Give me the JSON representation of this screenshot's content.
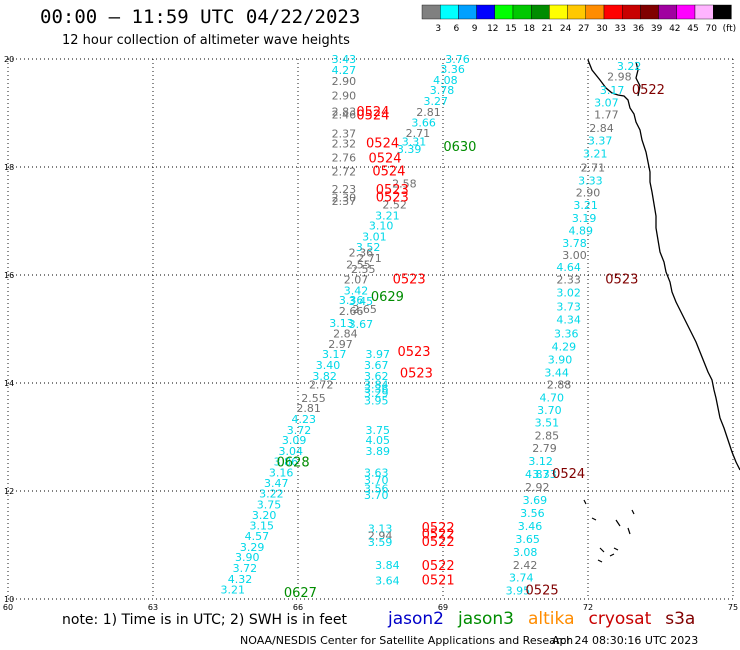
{
  "header": {
    "title": "00:00 – 11:59 UTC 04/22/2023",
    "subtitle": "12 hour collection of altimeter wave heights"
  },
  "legend": {
    "unit": "(ft)",
    "bins": [
      {
        "label": "3",
        "color": "#808080"
      },
      {
        "label": "6",
        "color": "#00ffff"
      },
      {
        "label": "9",
        "color": "#00a0ff"
      },
      {
        "label": "12",
        "color": "#0000ff"
      },
      {
        "label": "15",
        "color": "#00ff00"
      },
      {
        "label": "18",
        "color": "#00c800"
      },
      {
        "label": "21",
        "color": "#008c00"
      },
      {
        "label": "24",
        "color": "#ffff00"
      },
      {
        "label": "27",
        "color": "#ffc800"
      },
      {
        "label": "30",
        "color": "#ff8c00"
      },
      {
        "label": "33",
        "color": "#ff0000"
      },
      {
        "label": "36",
        "color": "#c80000"
      },
      {
        "label": "39",
        "color": "#800000"
      },
      {
        "label": "42",
        "color": "#a000a0"
      },
      {
        "label": "45",
        "color": "#ff00ff"
      },
      {
        "label": "70",
        "color": "#ffb4ff"
      },
      {
        "label": "",
        "color": "#000000"
      }
    ]
  },
  "axes": {
    "lon_ticks": [
      "60",
      "63",
      "66",
      "69",
      "72",
      "75"
    ],
    "lat_ticks": [
      "10",
      "12",
      "14",
      "16",
      "18",
      "20"
    ],
    "lon_range": [
      60,
      75
    ],
    "lat_range": [
      10,
      20
    ]
  },
  "colors": {
    "jason2": "#0000c8",
    "jason3": "#008c00",
    "altika": "#ff8c00",
    "cryosat": "#c80000",
    "s3a": "#800000",
    "gray_obs": "#707070",
    "cyan_obs": "#00d8e8"
  },
  "observations": [
    {
      "t": "3.43",
      "lon": 66.95,
      "lat": 19.93,
      "c": "cyan"
    },
    {
      "t": "4.27",
      "lon": 66.95,
      "lat": 19.72,
      "c": "cyan"
    },
    {
      "t": "2.90",
      "lon": 66.95,
      "lat": 19.52,
      "c": "gray"
    },
    {
      "t": "2.90",
      "lon": 66.95,
      "lat": 19.25,
      "c": "gray"
    },
    {
      "t": "2.83",
      "lon": 66.95,
      "lat": 18.95,
      "c": "gray"
    },
    {
      "t": "2.46",
      "lon": 66.95,
      "lat": 18.9,
      "c": "gray"
    },
    {
      "t": "2.37",
      "lon": 66.95,
      "lat": 18.55,
      "c": "gray"
    },
    {
      "t": "2.32",
      "lon": 66.95,
      "lat": 18.36,
      "c": "gray"
    },
    {
      "t": "2.76",
      "lon": 66.95,
      "lat": 18.1,
      "c": "gray"
    },
    {
      "t": "2.72",
      "lon": 66.95,
      "lat": 17.84,
      "c": "gray"
    },
    {
      "t": "2.23",
      "lon": 66.95,
      "lat": 17.52,
      "c": "gray"
    },
    {
      "t": "2.30",
      "lon": 66.95,
      "lat": 17.36,
      "c": "gray"
    },
    {
      "t": "2.37",
      "lon": 66.95,
      "lat": 17.3,
      "c": "gray"
    },
    {
      "t": "3.76",
      "lon": 69.3,
      "lat": 19.93,
      "c": "cyan"
    },
    {
      "t": "3.36",
      "lon": 69.2,
      "lat": 19.74,
      "c": "cyan"
    },
    {
      "t": "4.08",
      "lon": 69.05,
      "lat": 19.54,
      "c": "cyan"
    },
    {
      "t": "3.78",
      "lon": 68.98,
      "lat": 19.35,
      "c": "cyan"
    },
    {
      "t": "3.27",
      "lon": 68.85,
      "lat": 19.15,
      "c": "cyan"
    },
    {
      "t": "2.81",
      "lon": 68.7,
      "lat": 18.94,
      "c": "gray"
    },
    {
      "t": "3.66",
      "lon": 68.6,
      "lat": 18.75,
      "c": "cyan"
    },
    {
      "t": "2.71",
      "lon": 68.48,
      "lat": 18.56,
      "c": "gray"
    },
    {
      "t": "3.31",
      "lon": 68.4,
      "lat": 18.4,
      "c": "cyan"
    },
    {
      "t": "3.39",
      "lon": 68.3,
      "lat": 18.26,
      "c": "cyan"
    },
    {
      "t": "2.58",
      "lon": 68.2,
      "lat": 17.62,
      "c": "gray"
    },
    {
      "t": "2.52",
      "lon": 68.0,
      "lat": 17.23,
      "c": "gray"
    },
    {
      "t": "3.21",
      "lon": 67.85,
      "lat": 17.03,
      "c": "cyan"
    },
    {
      "t": "3.10",
      "lon": 67.72,
      "lat": 16.84,
      "c": "cyan"
    },
    {
      "t": "3.01",
      "lon": 67.58,
      "lat": 16.64,
      "c": "cyan"
    },
    {
      "t": "3.52",
      "lon": 67.45,
      "lat": 16.44,
      "c": "cyan"
    },
    {
      "t": "2.36",
      "lon": 67.3,
      "lat": 16.34,
      "c": "gray"
    },
    {
      "t": "2.71",
      "lon": 67.48,
      "lat": 16.24,
      "c": "gray"
    },
    {
      "t": "2.55",
      "lon": 67.25,
      "lat": 16.12,
      "c": "gray"
    },
    {
      "t": "2.55",
      "lon": 67.35,
      "lat": 16.04,
      "c": "gray"
    },
    {
      "t": "2.07",
      "lon": 67.2,
      "lat": 15.84,
      "c": "gray"
    },
    {
      "t": "3.42",
      "lon": 67.2,
      "lat": 15.64,
      "c": "cyan"
    },
    {
      "t": "3.36",
      "lon": 67.1,
      "lat": 15.46,
      "c": "cyan"
    },
    {
      "t": "3.45",
      "lon": 67.3,
      "lat": 15.44,
      "c": "cyan"
    },
    {
      "t": "2.66",
      "lon": 67.1,
      "lat": 15.26,
      "c": "gray"
    },
    {
      "t": "2.65",
      "lon": 67.38,
      "lat": 15.3,
      "c": "gray"
    },
    {
      "t": "3.13",
      "lon": 66.9,
      "lat": 15.04,
      "c": "cyan"
    },
    {
      "t": "3.67",
      "lon": 67.3,
      "lat": 15.02,
      "c": "cyan"
    },
    {
      "t": "2.84",
      "lon": 66.98,
      "lat": 14.84,
      "c": "gray"
    },
    {
      "t": "2.97",
      "lon": 66.88,
      "lat": 14.65,
      "c": "gray"
    },
    {
      "t": "3.17",
      "lon": 66.75,
      "lat": 14.46,
      "c": "cyan"
    },
    {
      "t": "3.97",
      "lon": 67.65,
      "lat": 14.46,
      "c": "cyan"
    },
    {
      "t": "3.40",
      "lon": 66.62,
      "lat": 14.26,
      "c": "cyan"
    },
    {
      "t": "3.67",
      "lon": 67.62,
      "lat": 14.26,
      "c": "cyan"
    },
    {
      "t": "3.82",
      "lon": 66.55,
      "lat": 14.06,
      "c": "cyan"
    },
    {
      "t": "3.62",
      "lon": 67.62,
      "lat": 14.06,
      "c": "cyan"
    },
    {
      "t": "2.72",
      "lon": 66.48,
      "lat": 13.9,
      "c": "gray"
    },
    {
      "t": "3.84",
      "lon": 67.62,
      "lat": 13.9,
      "c": "cyan"
    },
    {
      "t": "3.36",
      "lon": 67.62,
      "lat": 13.82,
      "c": "cyan"
    },
    {
      "t": "3.29",
      "lon": 67.62,
      "lat": 13.74,
      "c": "cyan"
    },
    {
      "t": "2.55",
      "lon": 66.32,
      "lat": 13.65,
      "c": "gray"
    },
    {
      "t": "3.95",
      "lon": 67.62,
      "lat": 13.6,
      "c": "cyan"
    },
    {
      "t": "2.81",
      "lon": 66.22,
      "lat": 13.46,
      "c": "gray"
    },
    {
      "t": "4.23",
      "lon": 66.12,
      "lat": 13.26,
      "c": "cyan"
    },
    {
      "t": "3.72",
      "lon": 66.02,
      "lat": 13.06,
      "c": "cyan"
    },
    {
      "t": "3.75",
      "lon": 67.65,
      "lat": 13.06,
      "c": "cyan"
    },
    {
      "t": "3.09",
      "lon": 65.92,
      "lat": 12.87,
      "c": "cyan"
    },
    {
      "t": "4.05",
      "lon": 67.65,
      "lat": 12.87,
      "c": "cyan"
    },
    {
      "t": "3.04",
      "lon": 65.85,
      "lat": 12.67,
      "c": "cyan"
    },
    {
      "t": "3.89",
      "lon": 67.65,
      "lat": 12.67,
      "c": "cyan"
    },
    {
      "t": "3.86",
      "lon": 65.75,
      "lat": 12.47,
      "c": "cyan"
    },
    {
      "t": "3.16",
      "lon": 65.65,
      "lat": 12.27,
      "c": "cyan"
    },
    {
      "t": "3.63",
      "lon": 67.62,
      "lat": 12.27,
      "c": "cyan"
    },
    {
      "t": "3.47",
      "lon": 65.55,
      "lat": 12.07,
      "c": "cyan"
    },
    {
      "t": "3.70",
      "lon": 67.62,
      "lat": 12.13,
      "c": "cyan"
    },
    {
      "t": "3.22",
      "lon": 65.45,
      "lat": 11.88,
      "c": "cyan"
    },
    {
      "t": "3.56",
      "lon": 67.62,
      "lat": 11.97,
      "c": "cyan"
    },
    {
      "t": "3.70",
      "lon": 67.62,
      "lat": 11.85,
      "c": "cyan"
    },
    {
      "t": "3.75",
      "lon": 65.4,
      "lat": 11.68,
      "c": "cyan"
    },
    {
      "t": "3.20",
      "lon": 65.3,
      "lat": 11.48,
      "c": "cyan"
    },
    {
      "t": "3.15",
      "lon": 65.25,
      "lat": 11.29,
      "c": "cyan"
    },
    {
      "t": "3.13",
      "lon": 67.7,
      "lat": 11.23,
      "c": "cyan"
    },
    {
      "t": "4.57",
      "lon": 65.15,
      "lat": 11.09,
      "c": "cyan"
    },
    {
      "t": "2.94",
      "lon": 67.7,
      "lat": 11.1,
      "c": "gray"
    },
    {
      "t": "3.59",
      "lon": 67.7,
      "lat": 10.98,
      "c": "cyan"
    },
    {
      "t": "3.29",
      "lon": 65.05,
      "lat": 10.89,
      "c": "cyan"
    },
    {
      "t": "3.90",
      "lon": 64.95,
      "lat": 10.7,
      "c": "cyan"
    },
    {
      "t": "3.84",
      "lon": 67.85,
      "lat": 10.56,
      "c": "cyan"
    },
    {
      "t": "3.72",
      "lon": 64.9,
      "lat": 10.5,
      "c": "cyan"
    },
    {
      "t": "4.32",
      "lon": 64.8,
      "lat": 10.3,
      "c": "cyan"
    },
    {
      "t": "3.64",
      "lon": 67.85,
      "lat": 10.27,
      "c": "cyan"
    },
    {
      "t": "3.21",
      "lon": 64.65,
      "lat": 10.1,
      "c": "cyan"
    },
    {
      "t": "3.22",
      "lon": 72.85,
      "lat": 19.8,
      "c": "cyan"
    },
    {
      "t": "2.98",
      "lon": 72.65,
      "lat": 19.6,
      "c": "gray"
    },
    {
      "t": "3.17",
      "lon": 72.5,
      "lat": 19.35,
      "c": "cyan"
    },
    {
      "t": "3.07",
      "lon": 72.38,
      "lat": 19.12,
      "c": "cyan"
    },
    {
      "t": "1.77",
      "lon": 72.38,
      "lat": 18.9,
      "c": "gray"
    },
    {
      "t": "2.84",
      "lon": 72.28,
      "lat": 18.65,
      "c": "gray"
    },
    {
      "t": "3.37",
      "lon": 72.25,
      "lat": 18.42,
      "c": "cyan"
    },
    {
      "t": "3.21",
      "lon": 72.15,
      "lat": 18.18,
      "c": "cyan"
    },
    {
      "t": "2.71",
      "lon": 72.1,
      "lat": 17.92,
      "c": "gray"
    },
    {
      "t": "3.33",
      "lon": 72.05,
      "lat": 17.68,
      "c": "cyan"
    },
    {
      "t": "2.90",
      "lon": 72.0,
      "lat": 17.45,
      "c": "gray"
    },
    {
      "t": "3.21",
      "lon": 71.95,
      "lat": 17.22,
      "c": "cyan"
    },
    {
      "t": "3.19",
      "lon": 71.92,
      "lat": 16.98,
      "c": "cyan"
    },
    {
      "t": "4.89",
      "lon": 71.85,
      "lat": 16.75,
      "c": "cyan"
    },
    {
      "t": "3.78",
      "lon": 71.72,
      "lat": 16.52,
      "c": "cyan"
    },
    {
      "t": "3.00",
      "lon": 71.72,
      "lat": 16.3,
      "c": "gray"
    },
    {
      "t": "4.64",
      "lon": 71.6,
      "lat": 16.07,
      "c": "cyan"
    },
    {
      "t": "2.33",
      "lon": 71.6,
      "lat": 15.84,
      "c": "gray"
    },
    {
      "t": "3.02",
      "lon": 71.6,
      "lat": 15.6,
      "c": "cyan"
    },
    {
      "t": "3.73",
      "lon": 71.6,
      "lat": 15.34,
      "c": "cyan"
    },
    {
      "t": "4.34",
      "lon": 71.6,
      "lat": 15.1,
      "c": "cyan"
    },
    {
      "t": "3.36",
      "lon": 71.55,
      "lat": 14.84,
      "c": "cyan"
    },
    {
      "t": "4.29",
      "lon": 71.5,
      "lat": 14.6,
      "c": "cyan"
    },
    {
      "t": "3.90",
      "lon": 71.42,
      "lat": 14.36,
      "c": "cyan"
    },
    {
      "t": "3.44",
      "lon": 71.35,
      "lat": 14.12,
      "c": "cyan"
    },
    {
      "t": "2.88",
      "lon": 71.4,
      "lat": 13.9,
      "c": "gray"
    },
    {
      "t": "4.70",
      "lon": 71.25,
      "lat": 13.66,
      "c": "cyan"
    },
    {
      "t": "3.70",
      "lon": 71.2,
      "lat": 13.43,
      "c": "cyan"
    },
    {
      "t": "3.51",
      "lon": 71.15,
      "lat": 13.19,
      "c": "cyan"
    },
    {
      "t": "2.85",
      "lon": 71.15,
      "lat": 12.95,
      "c": "gray"
    },
    {
      "t": "2.79",
      "lon": 71.1,
      "lat": 12.72,
      "c": "gray"
    },
    {
      "t": "3.12",
      "lon": 71.02,
      "lat": 12.48,
      "c": "cyan"
    },
    {
      "t": "4.87",
      "lon": 70.95,
      "lat": 12.24,
      "c": "cyan"
    },
    {
      "t": "3.33",
      "lon": 71.1,
      "lat": 12.24,
      "c": "cyan"
    },
    {
      "t": "2.92",
      "lon": 70.95,
      "lat": 12.0,
      "c": "gray"
    },
    {
      "t": "3.69",
      "lon": 70.9,
      "lat": 11.76,
      "c": "cyan"
    },
    {
      "t": "3.56",
      "lon": 70.85,
      "lat": 11.52,
      "c": "cyan"
    },
    {
      "t": "3.46",
      "lon": 70.8,
      "lat": 11.28,
      "c": "cyan"
    },
    {
      "t": "3.65",
      "lon": 70.75,
      "lat": 11.04,
      "c": "cyan"
    },
    {
      "t": "3.08",
      "lon": 70.7,
      "lat": 10.8,
      "c": "cyan"
    },
    {
      "t": "2.42",
      "lon": 70.7,
      "lat": 10.56,
      "c": "gray"
    },
    {
      "t": "3.74",
      "lon": 70.62,
      "lat": 10.32,
      "c": "cyan"
    },
    {
      "t": "3.95",
      "lon": 70.55,
      "lat": 10.08,
      "c": "cyan"
    }
  ],
  "passes": [
    {
      "t": "0524",
      "lon": 67.55,
      "lat": 18.94,
      "c": "red"
    },
    {
      "t": "0524",
      "lon": 67.55,
      "lat": 18.88,
      "c": "red"
    },
    {
      "t": "0524",
      "lon": 67.75,
      "lat": 18.36,
      "c": "red"
    },
    {
      "t": "0524",
      "lon": 67.8,
      "lat": 18.08,
      "c": "red"
    },
    {
      "t": "0524",
      "lon": 67.88,
      "lat": 17.84,
      "c": "red"
    },
    {
      "t": "0523",
      "lon": 67.95,
      "lat": 17.5,
      "c": "red"
    },
    {
      "t": "0523",
      "lon": 67.95,
      "lat": 17.36,
      "c": "red"
    },
    {
      "t": "0523",
      "lon": 68.3,
      "lat": 15.84,
      "c": "red"
    },
    {
      "t": "0523",
      "lon": 68.4,
      "lat": 14.5,
      "c": "red"
    },
    {
      "t": "0523",
      "lon": 68.45,
      "lat": 14.1,
      "c": "red"
    },
    {
      "t": "0522",
      "lon": 68.9,
      "lat": 11.24,
      "c": "red"
    },
    {
      "t": "0522",
      "lon": 68.9,
      "lat": 11.12,
      "c": "red"
    },
    {
      "t": "0522",
      "lon": 68.9,
      "lat": 10.98,
      "c": "red"
    },
    {
      "t": "0522",
      "lon": 68.9,
      "lat": 10.54,
      "c": "red"
    },
    {
      "t": "0521",
      "lon": 68.9,
      "lat": 10.27,
      "c": "red"
    },
    {
      "t": "0630",
      "lon": 69.35,
      "lat": 18.3,
      "c": "green"
    },
    {
      "t": "0629",
      "lon": 67.85,
      "lat": 15.52,
      "c": "green"
    },
    {
      "t": "0628",
      "lon": 65.9,
      "lat": 12.45,
      "c": "green"
    },
    {
      "t": "0627",
      "lon": 66.05,
      "lat": 10.04,
      "c": "green"
    },
    {
      "t": "0522",
      "lon": 73.25,
      "lat": 19.35,
      "c": "maroon"
    },
    {
      "t": "0523",
      "lon": 72.7,
      "lat": 15.84,
      "c": "maroon"
    },
    {
      "t": "0524",
      "lon": 71.6,
      "lat": 12.24,
      "c": "maroon"
    },
    {
      "t": "0525",
      "lon": 71.05,
      "lat": 10.08,
      "c": "maroon"
    }
  ],
  "footer": {
    "note": "note: 1) Time is in UTC; 2) SWH is in feet",
    "satellites": [
      {
        "name": "jason2",
        "color": "#0000c8"
      },
      {
        "name": "jason3",
        "color": "#008c00"
      },
      {
        "name": "altika",
        "color": "#ff8c00"
      },
      {
        "name": "cryosat",
        "color": "#c80000"
      },
      {
        "name": "s3a",
        "color": "#800000"
      }
    ],
    "credit": "NOAA/NESDIS Center for Satellite Applications and Research",
    "timestamp": "Apr 24 08:30:16 UTC 2023"
  }
}
